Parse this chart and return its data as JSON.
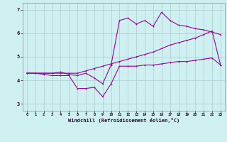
{
  "xlabel": "Windchill (Refroidissement éolien,°C)",
  "xlim": [
    -0.5,
    23.5
  ],
  "ylim": [
    2.7,
    7.3
  ],
  "yticks": [
    3,
    4,
    5,
    6,
    7
  ],
  "xticks": [
    0,
    1,
    2,
    3,
    4,
    5,
    6,
    7,
    8,
    9,
    10,
    11,
    12,
    13,
    14,
    15,
    16,
    17,
    18,
    19,
    20,
    21,
    22,
    23
  ],
  "bg_color": "#cff0f0",
  "line_color": "#990099",
  "grid_color": "#aacccc",
  "line1_x": [
    0,
    1,
    2,
    3,
    4,
    5,
    6,
    7,
    8,
    9,
    10,
    11,
    12,
    13,
    14,
    15,
    16,
    17,
    18,
    19,
    20,
    21,
    22,
    23
  ],
  "line1_y": [
    4.3,
    4.3,
    4.25,
    4.2,
    4.2,
    4.2,
    3.65,
    3.65,
    3.7,
    3.3,
    3.85,
    4.6,
    4.6,
    4.6,
    4.65,
    4.65,
    4.7,
    4.75,
    4.8,
    4.8,
    4.85,
    4.9,
    4.95,
    4.65
  ],
  "line2_x": [
    0,
    1,
    2,
    3,
    4,
    5,
    6,
    7,
    8,
    9,
    10,
    11,
    12,
    13,
    14,
    15,
    16,
    17,
    18,
    19,
    20,
    21,
    22,
    23
  ],
  "line2_y": [
    4.3,
    4.3,
    4.3,
    4.3,
    4.3,
    4.3,
    4.3,
    4.4,
    4.5,
    4.6,
    4.7,
    4.8,
    4.9,
    5.0,
    5.1,
    5.2,
    5.35,
    5.5,
    5.6,
    5.7,
    5.8,
    5.95,
    6.1,
    4.65
  ],
  "line3_x": [
    0,
    1,
    2,
    3,
    4,
    5,
    6,
    7,
    8,
    9,
    10,
    11,
    12,
    13,
    14,
    15,
    16,
    17,
    18,
    19,
    20,
    21,
    22,
    23
  ],
  "line3_y": [
    4.3,
    4.3,
    4.3,
    4.3,
    4.35,
    4.25,
    4.2,
    4.3,
    4.1,
    3.85,
    4.65,
    6.55,
    6.65,
    6.4,
    6.55,
    6.3,
    6.9,
    6.55,
    6.35,
    6.3,
    6.2,
    6.15,
    6.05,
    5.95
  ]
}
